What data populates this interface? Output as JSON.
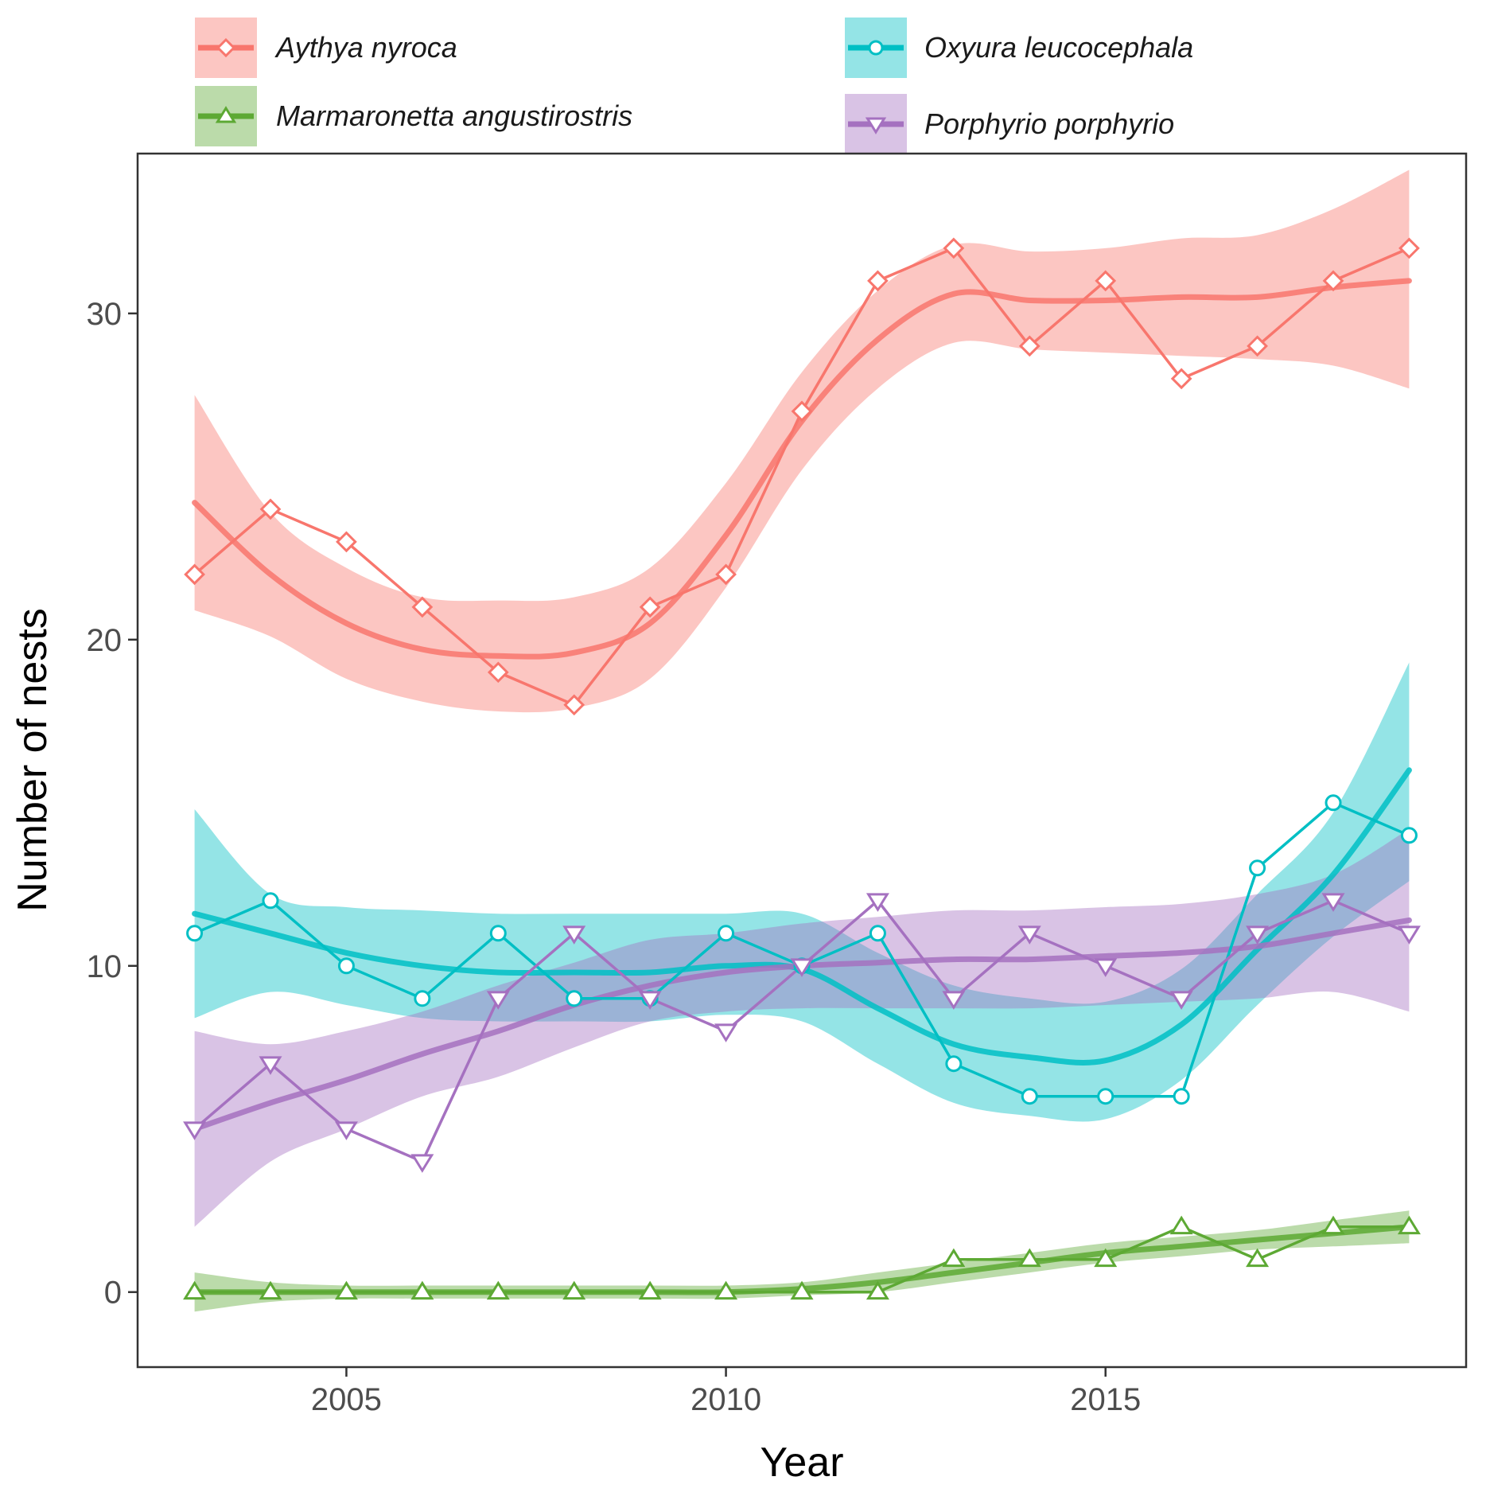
{
  "chart_data": {
    "type": "line",
    "title": "",
    "xlabel": "Year",
    "ylabel": "Number of nests",
    "xlim": [
      2002.25,
      2019.75
    ],
    "ylim": [
      -2.3,
      34.9
    ],
    "x_ticks": [
      2005,
      2010,
      2015
    ],
    "y_ticks": [
      0,
      10,
      20,
      30
    ],
    "grid": false,
    "legend_position": "top",
    "x": [
      2003,
      2004,
      2005,
      2006,
      2007,
      2008,
      2009,
      2010,
      2011,
      2012,
      2013,
      2014,
      2015,
      2016,
      2017,
      2018,
      2019
    ],
    "series": [
      {
        "name": "Aythya nyroca",
        "color": "#F8766D",
        "marker": "diamond",
        "values": [
          22,
          24,
          23,
          21,
          19,
          18,
          21,
          22,
          27,
          31,
          32,
          29,
          31,
          28,
          29,
          31,
          32
        ],
        "smooth": [
          24.2,
          22.0,
          20.5,
          19.7,
          19.5,
          19.6,
          20.5,
          23.2,
          26.7,
          29.2,
          30.6,
          30.4,
          30.4,
          30.5,
          30.5,
          30.8,
          31.0
        ],
        "band_lower": [
          20.9,
          20.1,
          18.8,
          18.1,
          17.8,
          17.9,
          18.8,
          21.6,
          25.2,
          27.7,
          29.1,
          28.9,
          28.8,
          28.7,
          28.6,
          28.4,
          27.7
        ],
        "band_upper": [
          27.5,
          23.9,
          22.2,
          21.3,
          21.2,
          21.3,
          22.2,
          24.8,
          28.2,
          30.7,
          32.1,
          31.9,
          32.0,
          32.3,
          32.4,
          33.2,
          34.4
        ]
      },
      {
        "name": "Oxyura leucocephala",
        "color": "#00BFC4",
        "marker": "circle",
        "values": [
          11,
          12,
          10,
          9,
          11,
          9,
          9,
          11,
          10,
          11,
          7,
          6,
          6,
          6,
          13,
          15,
          14
        ],
        "smooth": [
          11.6,
          11.0,
          10.4,
          10.0,
          9.8,
          9.8,
          9.8,
          10.0,
          9.9,
          8.7,
          7.6,
          7.2,
          7.1,
          8.2,
          10.5,
          12.8,
          16.0
        ],
        "band_lower": [
          8.4,
          9.2,
          8.8,
          8.4,
          8.3,
          8.3,
          8.3,
          8.5,
          8.3,
          7.0,
          5.8,
          5.4,
          5.3,
          6.5,
          8.8,
          10.9,
          12.6
        ],
        "band_upper": [
          14.8,
          12.2,
          11.8,
          11.7,
          11.6,
          11.6,
          11.6,
          11.6,
          11.6,
          10.4,
          9.4,
          9.0,
          8.9,
          9.9,
          12.2,
          14.7,
          19.3
        ]
      },
      {
        "name": "Marmaronetta angustirostris",
        "color": "#5DA934",
        "marker": "triangle-up",
        "values": [
          0,
          0,
          0,
          0,
          0,
          0,
          0,
          0,
          0,
          0,
          1,
          1,
          1,
          2,
          1,
          2,
          2
        ],
        "smooth": [
          0.0,
          0.0,
          0.0,
          0.0,
          0.0,
          0.0,
          0.0,
          0.0,
          0.1,
          0.3,
          0.6,
          0.9,
          1.2,
          1.4,
          1.6,
          1.8,
          2.0
        ],
        "band_lower": [
          -0.6,
          -0.3,
          -0.2,
          -0.2,
          -0.2,
          -0.2,
          -0.2,
          -0.2,
          -0.1,
          0.0,
          0.3,
          0.6,
          0.9,
          1.1,
          1.3,
          1.4,
          1.5
        ],
        "band_upper": [
          0.6,
          0.3,
          0.2,
          0.2,
          0.2,
          0.2,
          0.2,
          0.2,
          0.3,
          0.6,
          0.9,
          1.2,
          1.5,
          1.7,
          1.9,
          2.2,
          2.5
        ]
      },
      {
        "name": "Porphyrio porphyrio",
        "color": "#A571C0",
        "marker": "triangle-down",
        "values": [
          5,
          7,
          5,
          4,
          9,
          11,
          9,
          8,
          10,
          12,
          9,
          11,
          10,
          9,
          11,
          12,
          11
        ],
        "smooth": [
          5.0,
          5.8,
          6.5,
          7.3,
          8.0,
          8.8,
          9.4,
          9.8,
          10.0,
          10.1,
          10.2,
          10.2,
          10.3,
          10.4,
          10.6,
          11.0,
          11.4
        ],
        "band_lower": [
          2.0,
          4.0,
          5.0,
          6.0,
          6.6,
          7.5,
          8.3,
          8.6,
          8.7,
          8.7,
          8.7,
          8.7,
          8.8,
          8.9,
          9.0,
          9.2,
          8.6
        ],
        "band_upper": [
          8.0,
          7.6,
          8.0,
          8.6,
          9.4,
          10.1,
          10.8,
          11.0,
          11.3,
          11.5,
          11.7,
          11.7,
          11.8,
          11.9,
          12.2,
          12.8,
          14.2
        ]
      }
    ]
  }
}
